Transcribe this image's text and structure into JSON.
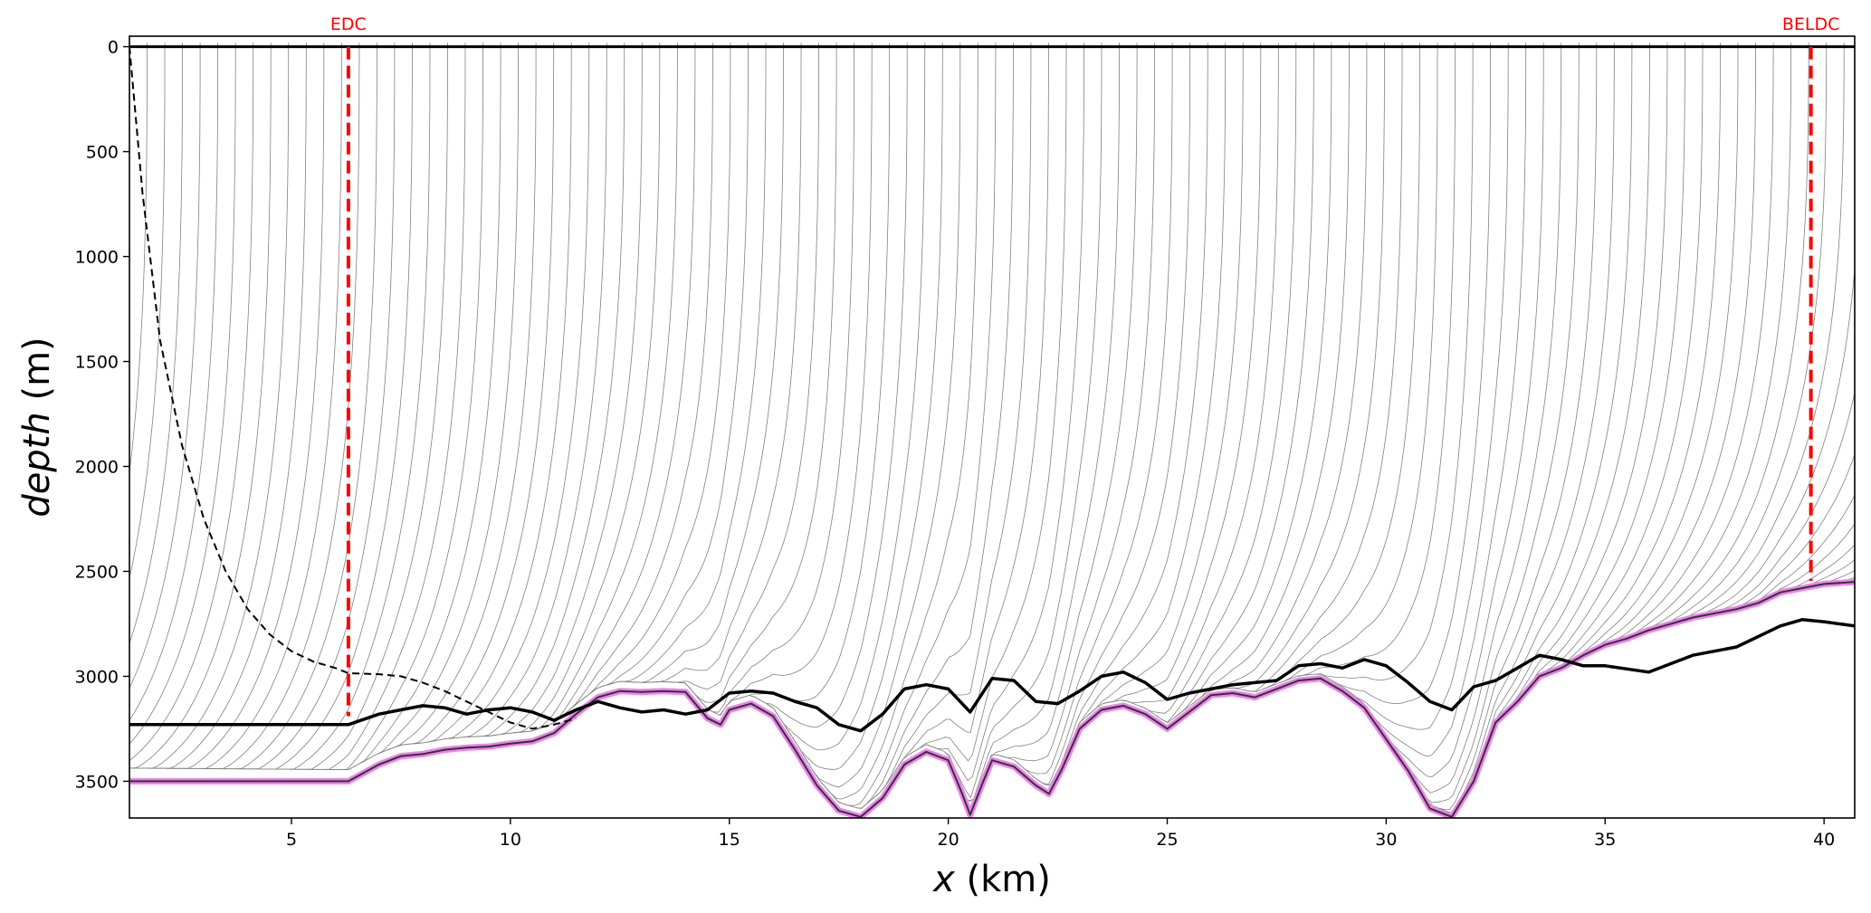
{
  "chart_data": {
    "type": "line",
    "title": "",
    "xlabel": {
      "italic": "x",
      "rest": " (km)"
    },
    "ylabel": {
      "italic": "depth",
      "rest": " (m)"
    },
    "xlim": [
      1.3,
      40.7
    ],
    "ylim": [
      3675,
      -50
    ],
    "y_inverted": true,
    "xticks": [
      5,
      10,
      15,
      20,
      25,
      30,
      35,
      40
    ],
    "yticks": [
      0,
      500,
      1000,
      1500,
      2000,
      2500,
      3000,
      3500
    ],
    "grid": false,
    "legend": "none",
    "markers": [
      {
        "name": "EDC",
        "x": 6.3,
        "label": "EDC",
        "color": "#ff0000",
        "depth_bottom": 3190
      },
      {
        "name": "BELDC",
        "x": 39.7,
        "label": "BELDC",
        "color": "#ff0000",
        "depth_bottom": 2545
      }
    ],
    "surface": {
      "depth": 0,
      "color": "#000000"
    },
    "bedrock": {
      "color": "#ee82ee",
      "x": [
        1.3,
        6.3,
        7.0,
        7.5,
        8.0,
        8.5,
        9.0,
        9.5,
        10.0,
        10.5,
        11.0,
        11.5,
        12.0,
        12.5,
        13.0,
        13.5,
        14.0,
        14.5,
        14.8,
        15.0,
        15.5,
        16.0,
        16.5,
        17.0,
        17.5,
        18.0,
        18.5,
        19.0,
        19.5,
        20.0,
        20.3,
        20.5,
        20.8,
        21.0,
        21.5,
        22.0,
        22.3,
        22.6,
        23.0,
        23.5,
        24.0,
        24.5,
        25.0,
        25.5,
        26.0,
        26.5,
        27.0,
        27.5,
        28.0,
        28.5,
        29.0,
        29.5,
        30.0,
        30.5,
        31.0,
        31.5,
        32.0,
        32.5,
        33.0,
        33.5,
        34.0,
        34.5,
        35.0,
        35.5,
        36.0,
        37.0,
        38.0,
        38.5,
        39.0,
        39.5,
        40.0,
        40.7
      ],
      "y": [
        3500,
        3500,
        3420,
        3380,
        3370,
        3350,
        3340,
        3335,
        3320,
        3310,
        3270,
        3180,
        3100,
        3070,
        3075,
        3070,
        3075,
        3200,
        3230,
        3160,
        3130,
        3190,
        3350,
        3520,
        3640,
        3670,
        3580,
        3420,
        3360,
        3400,
        3550,
        3660,
        3500,
        3400,
        3430,
        3520,
        3560,
        3440,
        3250,
        3160,
        3140,
        3180,
        3250,
        3170,
        3090,
        3080,
        3100,
        3060,
        3020,
        3010,
        3070,
        3150,
        3300,
        3450,
        3630,
        3670,
        3500,
        3220,
        3120,
        3000,
        2960,
        2900,
        2850,
        2820,
        2780,
        2720,
        2680,
        2650,
        2600,
        2580,
        2560,
        2550
      ]
    },
    "old_ice_line": {
      "style": "thick",
      "color": "#000000",
      "x": [
        1.3,
        6.3,
        7.0,
        7.5,
        8.0,
        8.5,
        9.0,
        9.5,
        10.0,
        10.5,
        11.0,
        11.5,
        12.0,
        12.5,
        13.0,
        13.5,
        14.0,
        14.5,
        15.0,
        15.5,
        16.0,
        16.5,
        17.0,
        17.5,
        18.0,
        18.5,
        19.0,
        19.5,
        20.0,
        20.5,
        21.0,
        21.5,
        22.0,
        22.5,
        23.0,
        23.5,
        24.0,
        24.5,
        25.0,
        25.5,
        26.0,
        26.5,
        27.0,
        27.5,
        28.0,
        28.5,
        29.0,
        29.5,
        30.0,
        30.5,
        31.0,
        31.5,
        32.0,
        32.5,
        33.0,
        33.5,
        34.0,
        34.5,
        35.0,
        36.0,
        37.0,
        38.0,
        39.0,
        39.5,
        40.0,
        40.7
      ],
      "y": [
        3230,
        3230,
        3180,
        3160,
        3140,
        3150,
        3180,
        3160,
        3150,
        3170,
        3210,
        3160,
        3120,
        3150,
        3170,
        3160,
        3180,
        3160,
        3080,
        3070,
        3080,
        3120,
        3150,
        3230,
        3260,
        3180,
        3060,
        3040,
        3060,
        3170,
        3010,
        3020,
        3120,
        3130,
        3070,
        3000,
        2980,
        3030,
        3110,
        3080,
        3060,
        3040,
        3030,
        3020,
        2950,
        2940,
        2960,
        2920,
        2950,
        3030,
        3120,
        3160,
        3050,
        3020,
        2960,
        2900,
        2920,
        2950,
        2950,
        2980,
        2900,
        2860,
        2760,
        2730,
        2740,
        2760
      ]
    },
    "dashed_line": {
      "style": "dashed",
      "color": "#000000",
      "x": [
        1.3,
        1.6,
        2.0,
        2.5,
        3.0,
        3.5,
        4.0,
        4.5,
        5.0,
        5.5,
        6.0,
        6.3,
        7.0,
        7.5,
        8.0,
        8.5,
        9.0,
        9.5,
        10.0,
        10.5,
        11.0,
        11.5
      ],
      "y": [
        0,
        700,
        1400,
        1900,
        2250,
        2500,
        2680,
        2800,
        2880,
        2930,
        2960,
        2985,
        2990,
        3000,
        3030,
        3070,
        3120,
        3170,
        3220,
        3250,
        3230,
        3200
      ]
    },
    "isochrones": {
      "count": 110,
      "color": "#808080"
    }
  }
}
